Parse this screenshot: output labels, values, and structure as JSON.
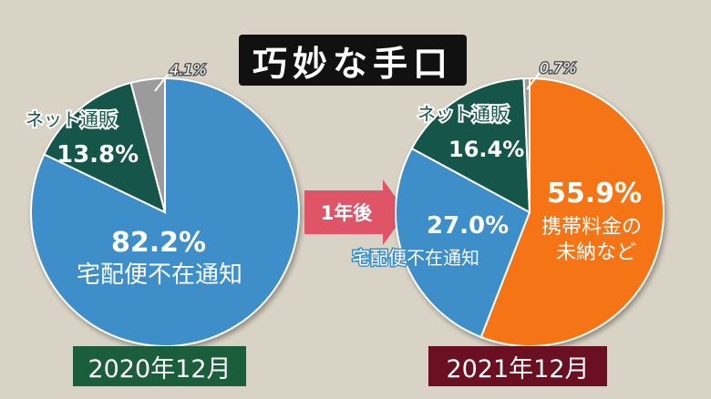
{
  "title": "巧妙な手口",
  "arrow_label": "1年後",
  "colors": {
    "background": "#d9d3c5",
    "blue": "#3c8ec9",
    "green": "#155448",
    "gray": "#9b9b9b",
    "orange": "#f57416",
    "arrow": "#e05468",
    "left_date_bg": "#1b5e3c",
    "right_date_bg": "#6b1022"
  },
  "chart_data": [
    {
      "type": "pie",
      "title": "",
      "date_label": "2020年12月",
      "slices": [
        {
          "label": "宅配便不在通知",
          "value": 82.2,
          "value_label": "82.2%",
          "color": "#3c8ec9"
        },
        {
          "label": "ネット通販",
          "value": 13.8,
          "value_label": "13.8%",
          "color": "#155448"
        },
        {
          "label": "",
          "value": 4.1,
          "value_label": "4.1%",
          "color": "#9b9b9b"
        }
      ]
    },
    {
      "type": "pie",
      "title": "",
      "date_label": "2021年12月",
      "slices": [
        {
          "label": "携帯料金の未納など",
          "value": 55.9,
          "value_label": "55.9%",
          "color": "#f57416"
        },
        {
          "label": "宅配便不在通知",
          "value": 27.0,
          "value_label": "27.0%",
          "color": "#3c8ec9"
        },
        {
          "label": "ネット通販",
          "value": 16.4,
          "value_label": "16.4%",
          "color": "#155448"
        },
        {
          "label": "",
          "value": 0.7,
          "value_label": "0.7%",
          "color": "#9b9b9b"
        }
      ]
    }
  ]
}
